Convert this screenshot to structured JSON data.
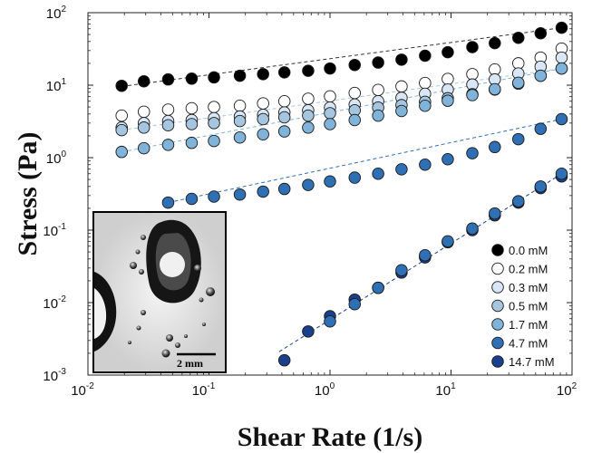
{
  "chart_data": {
    "type": "scatter",
    "title": "",
    "xlabel": "Shear Rate (1/s)",
    "ylabel": "Stress (Pa)",
    "xscale": "log",
    "yscale": "log",
    "xlim": [
      0.01,
      100
    ],
    "ylim": [
      0.001,
      100
    ],
    "x_ticks": [
      {
        "base": "10",
        "exp": "-2",
        "value": 0.01
      },
      {
        "base": "10",
        "exp": "-1",
        "value": 0.1
      },
      {
        "base": "10",
        "exp": "0",
        "value": 1
      },
      {
        "base": "10",
        "exp": "1",
        "value": 10
      },
      {
        "base": "10",
        "exp": "2",
        "value": 100
      }
    ],
    "y_ticks": [
      {
        "base": "10",
        "exp": "-3",
        "value": 0.001
      },
      {
        "base": "10",
        "exp": "-2",
        "value": 0.01
      },
      {
        "base": "10",
        "exp": "-1",
        "value": 0.1
      },
      {
        "base": "10",
        "exp": "0",
        "value": 1
      },
      {
        "base": "10",
        "exp": "1",
        "value": 10
      },
      {
        "base": "10",
        "exp": "2",
        "value": 100
      }
    ],
    "grid": false,
    "legend_position": "bottom-right",
    "marker_stroke": "#1a1a1a",
    "series": [
      {
        "name": "0.0 mM",
        "color": "#000000",
        "x": [
          0.019,
          0.029,
          0.046,
          0.072,
          0.11,
          0.18,
          0.28,
          0.42,
          0.66,
          1.0,
          1.6,
          2.5,
          3.9,
          6.1,
          9.4,
          15,
          23,
          36,
          55,
          82
        ],
        "y": [
          9.8,
          11.3,
          12.0,
          12.3,
          12.8,
          13.5,
          14.2,
          15.0,
          15.8,
          17.0,
          19.0,
          20.5,
          22.5,
          25.5,
          28.5,
          33.5,
          38,
          45,
          52,
          62
        ],
        "fit": [
          [
            0.019,
            9.6
          ],
          [
            82,
            62
          ]
        ]
      },
      {
        "name": "0.2 mM",
        "color": "#ffffff",
        "x": [
          0.019,
          0.029,
          0.046,
          0.072,
          0.11,
          0.18,
          0.28,
          0.42,
          0.66,
          1.0,
          1.6,
          2.5,
          3.9,
          6.1,
          9.4,
          15,
          23,
          36,
          55,
          82
        ],
        "y": [
          3.8,
          4.3,
          4.6,
          4.8,
          5.0,
          5.2,
          5.6,
          6.0,
          6.5,
          7.0,
          7.8,
          8.6,
          9.6,
          10.7,
          12.2,
          14.2,
          16.5,
          20,
          24,
          32
        ]
      },
      {
        "name": "0.3 mM",
        "color": "#d8e6f5",
        "x": [
          0.019,
          0.029,
          0.046,
          0.072,
          0.11,
          0.18,
          0.28,
          0.42,
          0.66,
          1.0,
          1.6,
          2.5,
          3.9,
          6.1,
          9.4,
          15,
          23,
          36,
          55,
          82
        ],
        "y": [
          2.6,
          3.0,
          3.2,
          3.3,
          3.5,
          3.7,
          3.9,
          4.2,
          4.5,
          4.9,
          5.4,
          6.0,
          6.7,
          7.6,
          8.7,
          10.2,
          12,
          14.5,
          18,
          24
        ]
      },
      {
        "name": "0.5 mM",
        "color": "#a6c6e0",
        "x": [
          0.019,
          0.029,
          0.046,
          0.072,
          0.11,
          0.18,
          0.28,
          0.42,
          0.66,
          1.0,
          1.6,
          2.5,
          3.9,
          6.1,
          9.4,
          15,
          23,
          36,
          55,
          82
        ],
        "y": [
          2.4,
          2.6,
          2.8,
          2.9,
          3.0,
          3.2,
          3.4,
          3.6,
          3.8,
          4.1,
          4.5,
          4.9,
          5.3,
          5.9,
          6.6,
          7.5,
          8.7,
          10.5,
          13.5,
          17
        ],
        "fit": [
          [
            0.019,
            2.4
          ],
          [
            82,
            17
          ]
        ]
      },
      {
        "name": "1.7 mM",
        "color": "#7fb3d9",
        "x": [
          0.019,
          0.029,
          0.046,
          0.072,
          0.11,
          0.18,
          0.28,
          0.42,
          0.66,
          1.0,
          1.6,
          2.5,
          3.9,
          6.1,
          9.4,
          15,
          23,
          36,
          55,
          82
        ],
        "y": [
          1.2,
          1.35,
          1.5,
          1.6,
          1.7,
          1.9,
          2.1,
          2.3,
          2.6,
          2.9,
          3.3,
          3.8,
          4.4,
          5.2,
          6.1,
          7.3,
          8.8,
          10.8,
          13.5,
          17
        ],
        "fit": [
          [
            0.019,
            1.2
          ],
          [
            82,
            17
          ]
        ]
      },
      {
        "name": "4.7 mM",
        "color": "#2f6fb3",
        "x": [
          0.046,
          0.072,
          0.11,
          0.18,
          0.28,
          0.42,
          0.66,
          1.0,
          1.6,
          2.5,
          3.9,
          6.1,
          9.4,
          15,
          23,
          36,
          55,
          82
        ],
        "y": [
          0.24,
          0.27,
          0.29,
          0.31,
          0.34,
          0.37,
          0.42,
          0.47,
          0.53,
          0.6,
          0.69,
          0.8,
          0.95,
          1.15,
          1.4,
          1.8,
          2.5,
          3.4
        ],
        "fit": [
          [
            0.046,
            0.24
          ],
          [
            82,
            3.4
          ]
        ]
      },
      {
        "name": "14.7 mM",
        "color": "#1a3f8c",
        "x": [
          0.42,
          0.66,
          1.0,
          1.6,
          2.5,
          3.9,
          6.1,
          9.4,
          15,
          23,
          36,
          55,
          82
        ],
        "y": [
          0.0016,
          0.004,
          0.0065,
          0.011,
          0.016,
          0.026,
          0.042,
          0.068,
          0.1,
          0.16,
          0.24,
          0.38,
          0.55
        ],
        "fit": [
          [
            0.38,
            0.0021
          ],
          [
            82,
            0.6
          ]
        ]
      }
    ],
    "extra_points": [
      {
        "series": "4.7 mM",
        "x": 1.0,
        "y": 0.0055
      },
      {
        "series": "4.7 mM",
        "x": 1.6,
        "y": 0.0095
      },
      {
        "series": "4.7 mM",
        "x": 2.5,
        "y": 0.016
      },
      {
        "series": "4.7 mM",
        "x": 3.9,
        "y": 0.028
      },
      {
        "series": "4.7 mM",
        "x": 6.1,
        "y": 0.045
      },
      {
        "series": "4.7 mM",
        "x": 9.4,
        "y": 0.07
      },
      {
        "series": "4.7 mM",
        "x": 15,
        "y": 0.105
      },
      {
        "series": "4.7 mM",
        "x": 23,
        "y": 0.17
      },
      {
        "series": "4.7 mM",
        "x": 36,
        "y": 0.25
      },
      {
        "series": "4.7 mM",
        "x": 55,
        "y": 0.4
      },
      {
        "series": "4.7 mM",
        "x": 82,
        "y": 0.6
      }
    ],
    "inset": {
      "scale_bar_label": "2 mm"
    }
  }
}
